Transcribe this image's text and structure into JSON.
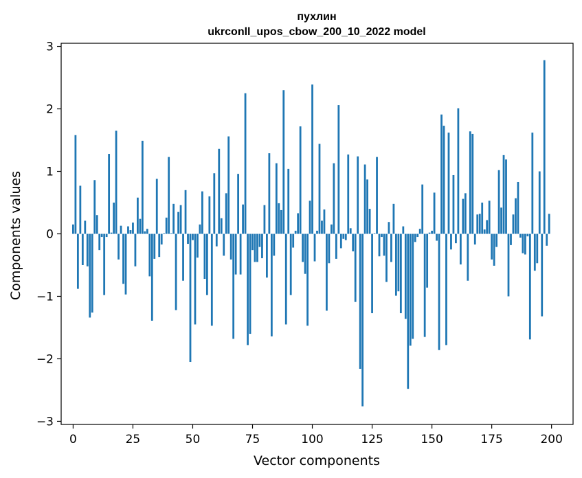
{
  "chart_data": {
    "type": "bar",
    "title_line1": "пухлин",
    "title_line2": "ukrconll_upos_cbow_200_10_2022 model",
    "xlabel": "Vector components",
    "ylabel": "Components values",
    "xlim": [
      -5,
      209
    ],
    "ylim": [
      -3.05,
      3.05
    ],
    "xticks": [
      0,
      25,
      50,
      75,
      100,
      125,
      150,
      175,
      200
    ],
    "yticks": [
      -3,
      -2,
      -1,
      0,
      1,
      2,
      3
    ],
    "ytick_labels": [
      "−3",
      "−2",
      "−1",
      "0",
      "1",
      "2",
      "3"
    ],
    "bar_color": "#1f77b4",
    "values": [
      0.15,
      1.58,
      -0.88,
      0.77,
      -0.5,
      0.21,
      -0.52,
      -1.34,
      -1.26,
      0.86,
      0.3,
      -0.26,
      -0.05,
      -0.98,
      -0.05,
      1.28,
      0.02,
      0.5,
      1.65,
      -0.41,
      0.13,
      -0.8,
      -0.97,
      0.12,
      0.06,
      0.18,
      -0.52,
      0.58,
      0.24,
      1.49,
      0.04,
      0.08,
      -0.68,
      -1.39,
      -0.4,
      0.88,
      -0.37,
      -0.17,
      0.01,
      0.26,
      1.23,
      0.01,
      0.48,
      -1.22,
      0.35,
      0.46,
      -0.75,
      0.7,
      -0.16,
      -2.05,
      -0.1,
      -1.45,
      -0.38,
      0.15,
      0.68,
      -0.72,
      -0.98,
      0.6,
      -1.47,
      0.97,
      -0.2,
      1.36,
      0.25,
      -0.35,
      0.65,
      1.56,
      -0.41,
      -1.68,
      -0.65,
      0.96,
      -0.65,
      0.47,
      2.25,
      -1.78,
      -1.6,
      -0.26,
      -0.45,
      -0.45,
      -0.21,
      -0.39,
      0.46,
      -0.7,
      1.29,
      -1.64,
      -0.35,
      1.13,
      0.49,
      0.38,
      2.3,
      -1.45,
      1.04,
      -0.98,
      -0.22,
      0.05,
      0.33,
      1.72,
      -0.45,
      -0.64,
      -1.47,
      0.53,
      2.39,
      -0.44,
      0.05,
      1.44,
      0.21,
      0.39,
      -1.23,
      -0.47,
      0.15,
      1.13,
      -0.4,
      2.06,
      -0.23,
      -0.08,
      -0.1,
      1.27,
      0.09,
      -0.28,
      -1.09,
      1.24,
      -2.16,
      -2.76,
      1.11,
      0.87,
      0.4,
      -1.27,
      0.01,
      1.23,
      -0.36,
      -0.05,
      -0.35,
      -0.77,
      0.19,
      -0.45,
      0.48,
      -0.99,
      -0.92,
      -1.27,
      0.12,
      -1.36,
      -2.48,
      -1.79,
      -1.68,
      -0.13,
      -0.05,
      0.08,
      0.79,
      -1.65,
      -0.86,
      0.02,
      0.05,
      0.66,
      -0.11,
      -1.86,
      1.91,
      1.73,
      -1.78,
      1.62,
      -0.25,
      0.94,
      -0.15,
      2.01,
      -0.49,
      0.56,
      0.65,
      -0.75,
      1.64,
      1.6,
      -0.17,
      0.31,
      0.32,
      0.5,
      0.07,
      0.22,
      0.53,
      -0.41,
      -0.51,
      -0.21,
      1.02,
      0.42,
      1.26,
      1.19,
      -1.0,
      -0.18,
      0.31,
      0.57,
      0.83,
      -0.06,
      -0.31,
      -0.33,
      -0.04,
      -1.69,
      1.62,
      -0.59,
      -0.47,
      1.0,
      -1.32,
      2.78,
      -0.19,
      0.32
    ]
  }
}
